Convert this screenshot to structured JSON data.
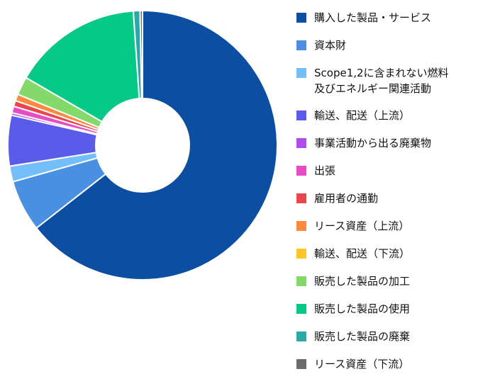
{
  "chart_data": {
    "type": "pie",
    "title": "",
    "legend_position": "right",
    "categories": [
      "購入した製品・サービス",
      "資本財",
      "Scope1,2に含まれない燃料\n及びエネルギー関連活動",
      "輸送、配送（上流）",
      "事業活動から出る廃棄物",
      "出張",
      "雇用者の通勤",
      "リース資産（上流）",
      "輸送、配送（下流）",
      "販売した製品の加工",
      "販売した製品の使用",
      "販売した製品の廃棄",
      "リース資産（下流）"
    ],
    "values": [
      64.7,
      6.2,
      1.9,
      6.1,
      0.3,
      0.8,
      0.7,
      0.8,
      0.0,
      2.2,
      15.6,
      0.8,
      0.3
    ],
    "colors": [
      "#0B4EA2",
      "#4A90E2",
      "#74BEFA",
      "#5B5BEA",
      "#B04DE8",
      "#E84CC4",
      "#E8474B",
      "#FF8A3D",
      "#FFC629",
      "#84D96B",
      "#06C987",
      "#2CA9A6",
      "#6B6B6B"
    ]
  }
}
